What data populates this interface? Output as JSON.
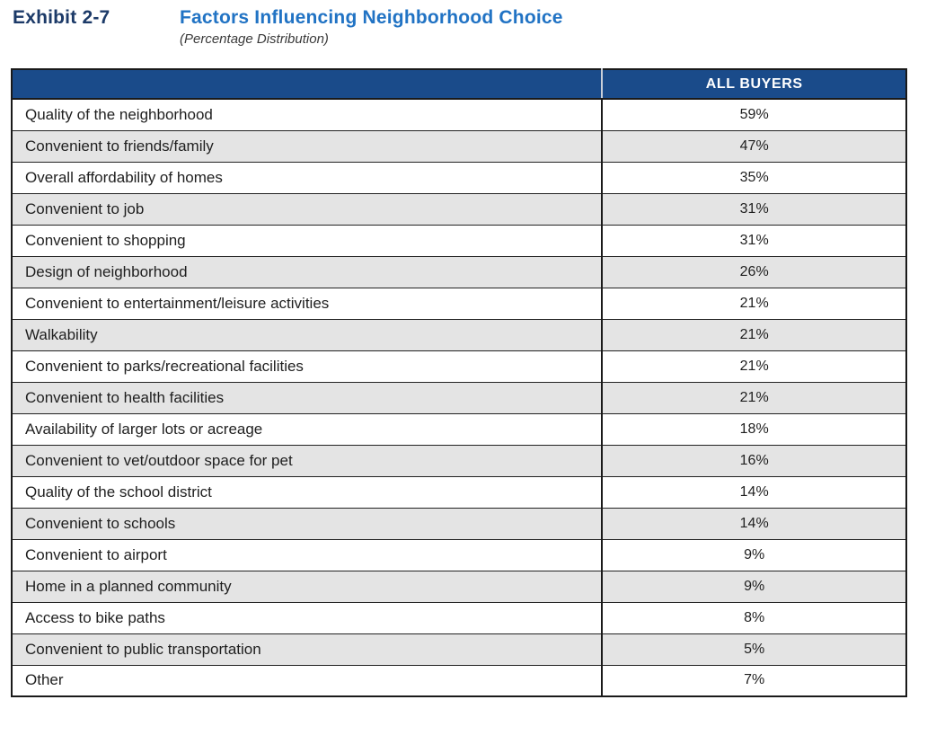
{
  "header": {
    "exhibit_label": "Exhibit 2-7",
    "title": "Factors Influencing Neighborhood Choice",
    "subtitle": "(Percentage Distribution)"
  },
  "table": {
    "column_header": "ALL BUYERS",
    "rows": [
      {
        "factor": "Quality of the neighborhood",
        "all_buyers": "59%"
      },
      {
        "factor": "Convenient to friends/family",
        "all_buyers": "47%"
      },
      {
        "factor": "Overall affordability of homes",
        "all_buyers": "35%"
      },
      {
        "factor": "Convenient to job",
        "all_buyers": "31%"
      },
      {
        "factor": "Convenient to shopping",
        "all_buyers": "31%"
      },
      {
        "factor": "Design of neighborhood",
        "all_buyers": "26%"
      },
      {
        "factor": "Convenient to entertainment/leisure activities",
        "all_buyers": "21%"
      },
      {
        "factor": "Walkability",
        "all_buyers": "21%"
      },
      {
        "factor": "Convenient to parks/recreational facilities",
        "all_buyers": "21%"
      },
      {
        "factor": "Convenient to health facilities",
        "all_buyers": "21%"
      },
      {
        "factor": "Availability of larger lots or acreage",
        "all_buyers": "18%"
      },
      {
        "factor": "Convenient to vet/outdoor space for pet",
        "all_buyers": "16%"
      },
      {
        "factor": "Quality of the school district",
        "all_buyers": "14%"
      },
      {
        "factor": "Convenient to schools",
        "all_buyers": "14%"
      },
      {
        "factor": "Convenient to airport",
        "all_buyers": "9%"
      },
      {
        "factor": "Home in a planned community",
        "all_buyers": "9%"
      },
      {
        "factor": "Access to bike paths",
        "all_buyers": "8%"
      },
      {
        "factor": "Convenient to public transportation",
        "all_buyers": "5%"
      },
      {
        "factor": "Other",
        "all_buyers": "7%"
      }
    ]
  },
  "chart_data": {
    "type": "table",
    "title": "Factors Influencing Neighborhood Choice",
    "subtitle": "(Percentage Distribution)",
    "columns": [
      "",
      "ALL BUYERS"
    ],
    "categories": [
      "Quality of the neighborhood",
      "Convenient to friends/family",
      "Overall affordability of homes",
      "Convenient to job",
      "Convenient to shopping",
      "Design of neighborhood",
      "Convenient to entertainment/leisure activities",
      "Walkability",
      "Convenient to parks/recreational facilities",
      "Convenient to health facilities",
      "Availability of larger lots or acreage",
      "Convenient to vet/outdoor space for pet",
      "Quality of the school district",
      "Convenient to schools",
      "Convenient to airport",
      "Home in a planned community",
      "Access to bike paths",
      "Convenient to public transportation",
      "Other"
    ],
    "values": [
      59,
      47,
      35,
      31,
      31,
      26,
      21,
      21,
      21,
      21,
      18,
      16,
      14,
      14,
      9,
      9,
      8,
      5,
      7
    ]
  },
  "colors": {
    "exhibit_navy": "#1C3A68",
    "title_blue": "#2173C4",
    "header_navy": "#1A4B8A",
    "row_shade_gray": "#E4E4E4",
    "border_dark": "#1A1A1A"
  }
}
